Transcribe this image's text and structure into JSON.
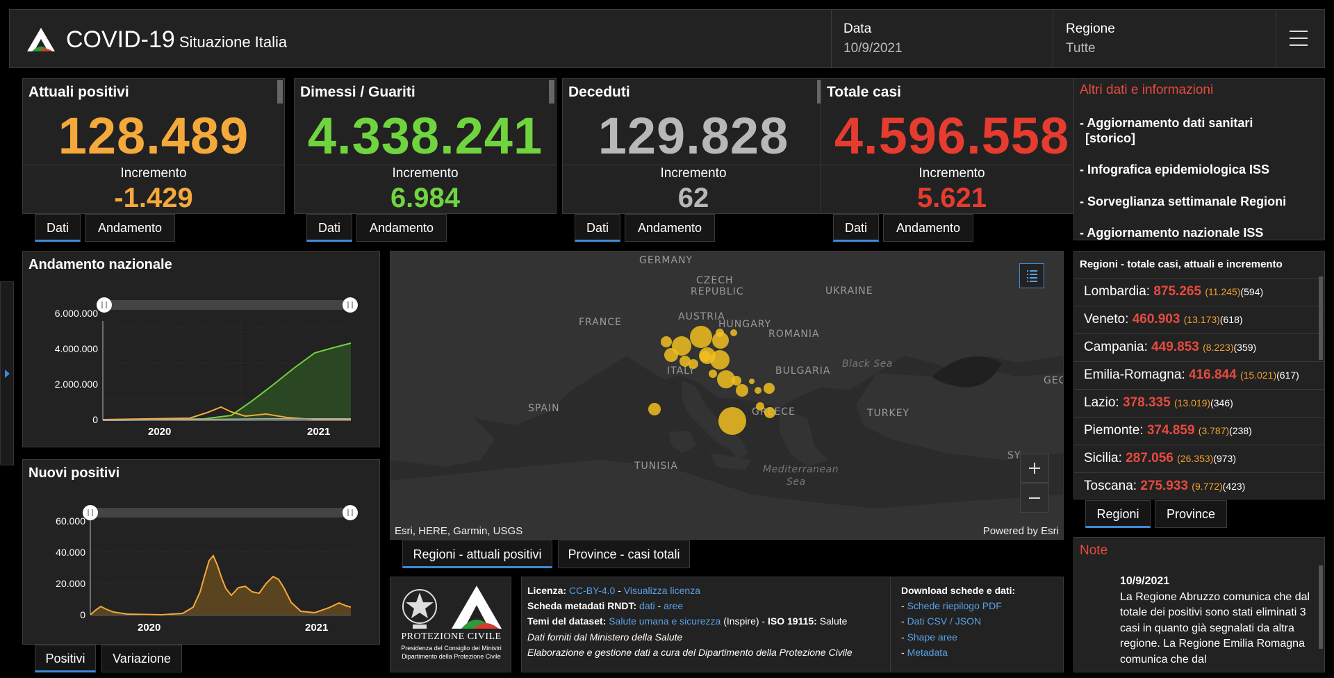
{
  "header": {
    "title": "COVID-19",
    "subtitle": "Situazione Italia",
    "date_label": "Data",
    "date_value": "10/9/2021",
    "region_label": "Regione",
    "region_value": "Tutte",
    "logo_icon": "protezione-civile-logo-icon",
    "menu_icon": "hamburger-menu-icon"
  },
  "stats": [
    {
      "title": "Attuali positivi",
      "value": "128.489",
      "inc_label": "Incremento",
      "inc": "-1.429",
      "color": "#f5a93b"
    },
    {
      "title": "Dimessi / Guariti",
      "value": "4.338.241",
      "inc_label": "Incremento",
      "inc": "6.984",
      "color": "#70d43f"
    },
    {
      "title": "Deceduti",
      "value": "129.828",
      "inc_label": "Incremento",
      "inc": "62",
      "color": "#b8b8b8"
    },
    {
      "title": "Totale casi",
      "value": "4.596.558",
      "inc_label": "Incremento",
      "inc": "5.621",
      "color": "#e63c2f"
    }
  ],
  "stat_tabs": {
    "dati": "Dati",
    "andamento": "Andamento"
  },
  "info": {
    "title": "Altri dati e informazioni",
    "items": [
      "- Aggiornamento dati sanitari",
      "[storico]",
      "- Infografica epidemiologica ISS",
      "- Sorveglianza settimanale Regioni",
      "- Aggiornamento nazionale ISS"
    ]
  },
  "regions": {
    "head": "Regioni - totale casi, attuali e incremento",
    "rows": [
      {
        "name": "Lombardia:",
        "total": "875.265",
        "inc": "(11.245)",
        "pos": "(594)"
      },
      {
        "name": "Veneto:",
        "total": "460.903",
        "inc": "(13.173)",
        "pos": "(618)"
      },
      {
        "name": "Campania:",
        "total": "449.853",
        "inc": "(8.223)",
        "pos": "(359)"
      },
      {
        "name": "Emilia-Romagna:",
        "total": "416.844",
        "inc": "(15.021)",
        "pos": "(617)"
      },
      {
        "name": "Lazio:",
        "total": "378.335",
        "inc": "(13.019)",
        "pos": "(346)"
      },
      {
        "name": "Piemonte:",
        "total": "374.859",
        "inc": "(3.787)",
        "pos": "(238)"
      },
      {
        "name": "Sicilia:",
        "total": "287.056",
        "inc": "(26.353)",
        "pos": "(973)"
      },
      {
        "name": "Toscana:",
        "total": "275.933",
        "inc": "(9.772)",
        "pos": "(423)"
      }
    ],
    "tab_regioni": "Regioni",
    "tab_province": "Province"
  },
  "chart_nazionale": {
    "title": "Andamento nazionale",
    "y_ticks": [
      "6.000.000",
      "4.000.000",
      "2.000.000",
      "0"
    ],
    "x_ticks": [
      "2020",
      "2021"
    ]
  },
  "chart_nuovi": {
    "title": "Nuovi positivi",
    "y_ticks": [
      "60.000",
      "40.000",
      "20.000",
      "0"
    ],
    "x_ticks": [
      "2020",
      "2021"
    ],
    "tab_positivi": "Positivi",
    "tab_variazione": "Variazione"
  },
  "map": {
    "labels": {
      "germany": "GERMANY",
      "czech1": "CZECH",
      "czech2": "REPUBLIC",
      "ukraine": "UKRAINE",
      "france": "FRANCE",
      "austria": "AUSTRIA",
      "hungary": "HUNGARY",
      "romania": "ROMANIA",
      "italy": "ITALY",
      "bulgaria": "BULGARIA",
      "blacksea": "Black Sea",
      "geo": "GEC",
      "spain": "SPAIN",
      "greece": "GREECE",
      "turkey": "TURKEY",
      "tunisia": "TUNISIA",
      "med1": "Mediterranean",
      "med2": "Sea",
      "sy": "SY"
    },
    "attribution": "Esri, HERE, Garmin, USGS",
    "powered": "Powered by Esri",
    "tab_regioni": "Regioni - attuali positivi",
    "tab_province": "Province - casi totali",
    "legend_icon": "legend-list-icon",
    "zoom_in_icon": "zoom-in-icon",
    "zoom_out_icon": "zoom-out-icon",
    "bubble_color": "#f0c020"
  },
  "footer": {
    "logo_text": "PROTEZIONE CIVILE",
    "logo_sub1": "Presidenza del Consiglio dei Ministri",
    "logo_sub2": "Dipartimento della Protezione Civile",
    "licenza_label": "Licenza:",
    "licenza_link": "CC-BY-4.0",
    "licenza_sep": " - ",
    "licenza_view": "Visualizza licenza",
    "scheda_label": "Scheda metadati RNDT:",
    "scheda_dati": "dati",
    "scheda_sep": " - ",
    "scheda_aree": "aree",
    "temi_label": "Temi del dataset:",
    "temi_link": "Salute umana e sicurezza",
    "temi_rest1": " (Inspire) - ",
    "temi_iso": "ISO 19115:",
    "temi_rest2": " Salute",
    "dati_forniti": "Dati forniti dal Ministero della Salute",
    "elaborazione": "Elaborazione e gestione dati a cura del Dipartimento della Protezione Civile",
    "download_title": "Download schede e dati:",
    "download_items": [
      "Schede riepilogo PDF",
      "Dati CSV / JSON",
      "Shape aree",
      "Metadata"
    ],
    "dash": "-"
  },
  "note": {
    "title": "Note",
    "date": "10/9/2021",
    "text": "La Regione Abruzzo comunica che dal totale dei positivi sono stati eliminati 3 casi in quanto già segnalati da altra regione. La Regione Emilia Romagna comunica che dal"
  }
}
